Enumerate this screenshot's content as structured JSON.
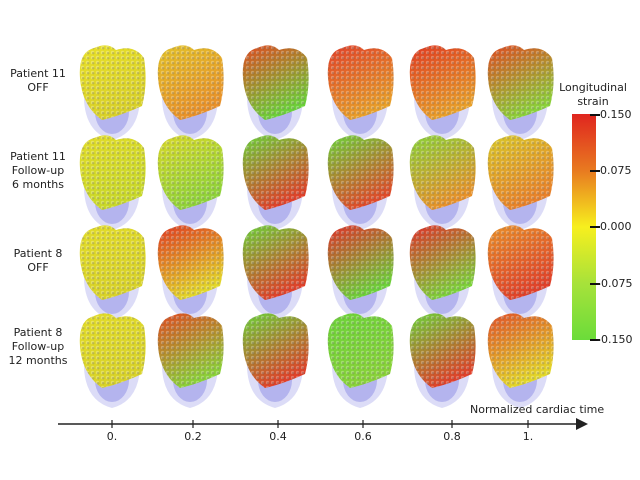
{
  "row_labels": [
    [
      "Patient 11",
      "OFF"
    ],
    [
      "Patient 11",
      "Follow-up",
      "6 months"
    ],
    [
      "Patient 8",
      "OFF"
    ],
    [
      "Patient 8",
      "Follow-up",
      "12 months"
    ]
  ],
  "colorbar": {
    "title_lines": [
      "Longitudinal",
      "strain"
    ],
    "ticks": [
      "0.150",
      "0.075",
      "0.000",
      "-0.075",
      "-0.150"
    ],
    "colors": [
      "#e0251f",
      "#e87a20",
      "#f7ef1e",
      "#a7e23a",
      "#6bdc3a"
    ]
  },
  "time_axis": {
    "label": "Normalized cardiac time",
    "ticks": [
      "0.",
      "0.2",
      "0.4",
      "0.6",
      "0.8",
      "1."
    ]
  },
  "panel_colors": [
    [
      [
        "#e8e02a",
        "#d8d02a"
      ],
      [
        "#e2c22a",
        "#e8902a"
      ],
      [
        "#e04a22",
        "#6bd23a"
      ],
      [
        "#e0402a",
        "#e8a02a"
      ],
      [
        "#e03a22",
        "#e8a02a"
      ],
      [
        "#e04a22",
        "#8ad23a"
      ]
    ],
    [
      [
        "#e2dc2a",
        "#c8d82a"
      ],
      [
        "#d8d82a",
        "#8ed23a"
      ],
      [
        "#6cd23a",
        "#e0402a"
      ],
      [
        "#6cd23a",
        "#e04a2a"
      ],
      [
        "#8ad23a",
        "#e8902a"
      ],
      [
        "#d8c82a",
        "#e8802a"
      ]
    ],
    [
      [
        "#e2dc2a",
        "#d8d22a"
      ],
      [
        "#e03a22",
        "#e2d82a"
      ],
      [
        "#6cd23a",
        "#e0402a"
      ],
      [
        "#e0302a",
        "#6cd23a"
      ],
      [
        "#e0302a",
        "#7cd23a"
      ],
      [
        "#e8902a",
        "#e0402a"
      ]
    ],
    [
      [
        "#e2dc2a",
        "#d8d22a"
      ],
      [
        "#e04a22",
        "#8ad23a"
      ],
      [
        "#6cd23a",
        "#e0402a"
      ],
      [
        "#6cd23a",
        "#8ad23a"
      ],
      [
        "#6cd23a",
        "#e0402a"
      ],
      [
        "#e0502a",
        "#e2d82a"
      ]
    ]
  ],
  "membrane_color": "#9a9ae8"
}
